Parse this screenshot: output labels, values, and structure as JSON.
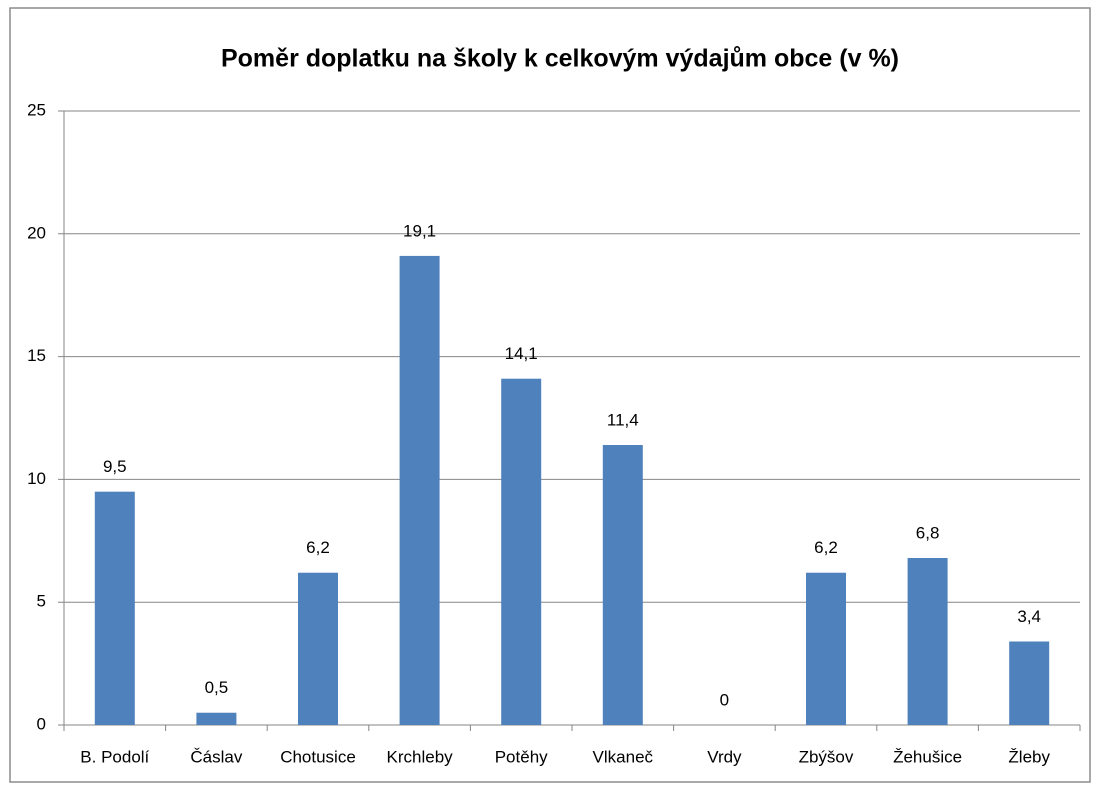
{
  "chart_data": {
    "type": "bar",
    "title": "Poměr doplatku na školy k celkovým výdajům obce (v %)",
    "categories": [
      "B. Podolí",
      "Čáslav",
      "Chotusice",
      "Krchleby",
      "Potěhy",
      "Vlkaneč",
      "Vrdy",
      "Zbýšov",
      "Žehušice",
      "Žleby"
    ],
    "values": [
      9.5,
      0.5,
      6.2,
      19.1,
      14.1,
      11.4,
      0,
      6.2,
      6.8,
      3.4
    ],
    "value_labels": [
      "9,5",
      "0,5",
      "6,2",
      "19,1",
      "14,1",
      "11,4",
      "0",
      "6,2",
      "6,8",
      "3,4"
    ],
    "color": "#4f81bd",
    "ylim": [
      0,
      25
    ],
    "yticks": [
      0,
      5,
      10,
      15,
      20,
      25
    ],
    "grid": true
  }
}
